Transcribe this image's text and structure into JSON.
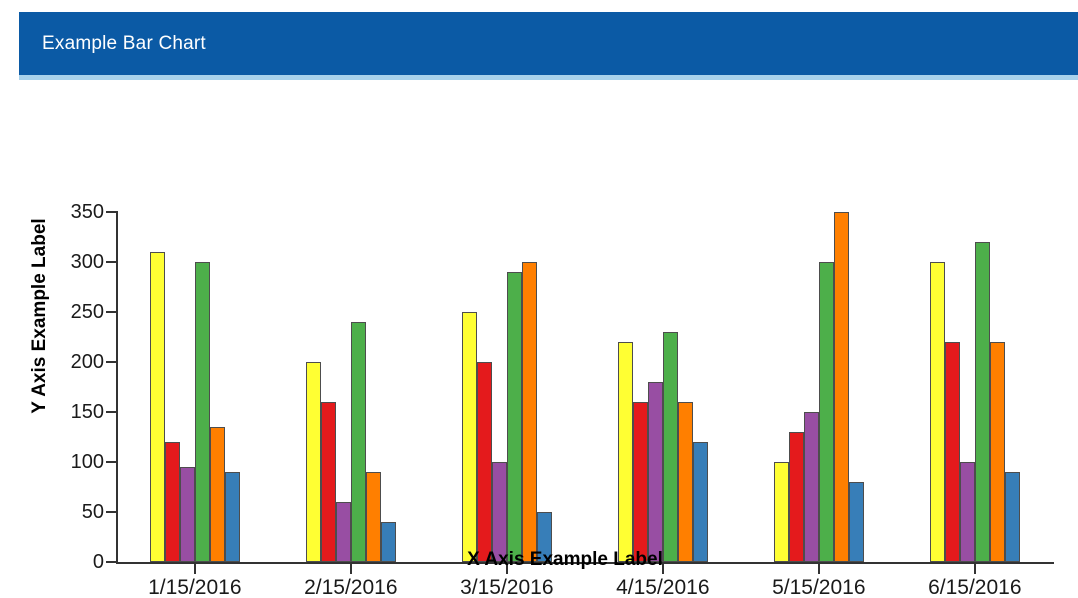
{
  "header": {
    "title": "Example Bar Chart",
    "bg_color": "#0B5AA5",
    "accent_strip_color": "#A8D2EC"
  },
  "chart_data": {
    "type": "bar",
    "title": "Example Bar Chart",
    "xlabel": "X Axis Example Label",
    "ylabel": "Y Axis Example Label",
    "categories": [
      "1/15/2016",
      "2/15/2016",
      "3/15/2016",
      "4/15/2016",
      "5/15/2016",
      "6/15/2016"
    ],
    "series": [
      {
        "name": "yellow",
        "color": "#FFFF33",
        "values": [
          310,
          200,
          250,
          220,
          100,
          300
        ]
      },
      {
        "name": "red",
        "color": "#E41A1C",
        "values": [
          120,
          160,
          200,
          160,
          130,
          220
        ]
      },
      {
        "name": "purple",
        "color": "#984EA3",
        "values": [
          95,
          60,
          100,
          180,
          150,
          100
        ]
      },
      {
        "name": "green",
        "color": "#4DAF4A",
        "values": [
          300,
          240,
          290,
          230,
          300,
          320
        ]
      },
      {
        "name": "orange",
        "color": "#FF7F00",
        "values": [
          135,
          90,
          300,
          160,
          350,
          220
        ]
      },
      {
        "name": "blue",
        "color": "#377EB8",
        "values": [
          90,
          40,
          50,
          120,
          80,
          90
        ]
      }
    ],
    "ylim": [
      0,
      350
    ],
    "ytick_step": 50,
    "yticks": [
      0,
      50,
      100,
      150,
      200,
      250,
      300,
      350
    ],
    "grid": false,
    "legend": "none",
    "bar_border_color": "#4D4D4D",
    "axis_color": "#333333"
  }
}
